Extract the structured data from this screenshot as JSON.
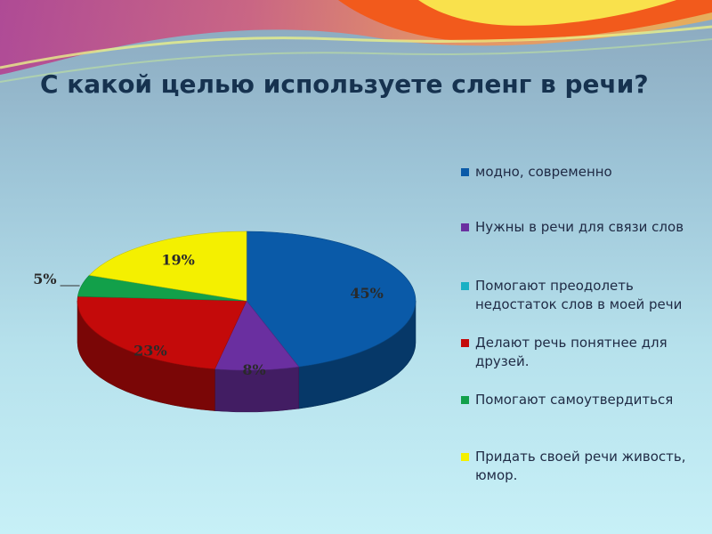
{
  "title": "С какой целью используете сленг в речи?",
  "chart_data": {
    "type": "pie",
    "style": "3d",
    "slices": [
      {
        "label": "модно, современно",
        "value": 45,
        "display": "45%",
        "color": "#0a5aa8"
      },
      {
        "label": "Нужны в речи для связи слов",
        "value": 8,
        "display": "8%",
        "color": "#6a2fa0"
      },
      {
        "label": "Делают речь понятнее для друзей.",
        "value": 23,
        "display": "23%",
        "color": "#c40a0a"
      },
      {
        "label": "Помогают самоутвердиться",
        "value": 5,
        "display": "5%",
        "color": "#12a04a"
      },
      {
        "label": "Придать своей речи живость, юмор.",
        "value": 19,
        "display": "19%",
        "color": "#f4f000"
      }
    ],
    "legend": [
      {
        "label": "модно, современно",
        "color": "#0a5aa8"
      },
      {
        "label": "Нужны в речи для связи слов",
        "color": "#6a2fa0"
      },
      {
        "label": "Помогают преодолеть недостаток слов в моей речи",
        "color": "#19b0c4"
      },
      {
        "label": "Делают речь понятнее для друзей.",
        "color": "#c40a0a"
      },
      {
        "label": "Помогают самоутвердиться",
        "color": "#12a04a"
      },
      {
        "label": "Придать своей речи живость, юмор.",
        "color": "#f4f000"
      }
    ],
    "legend_position": "right"
  }
}
